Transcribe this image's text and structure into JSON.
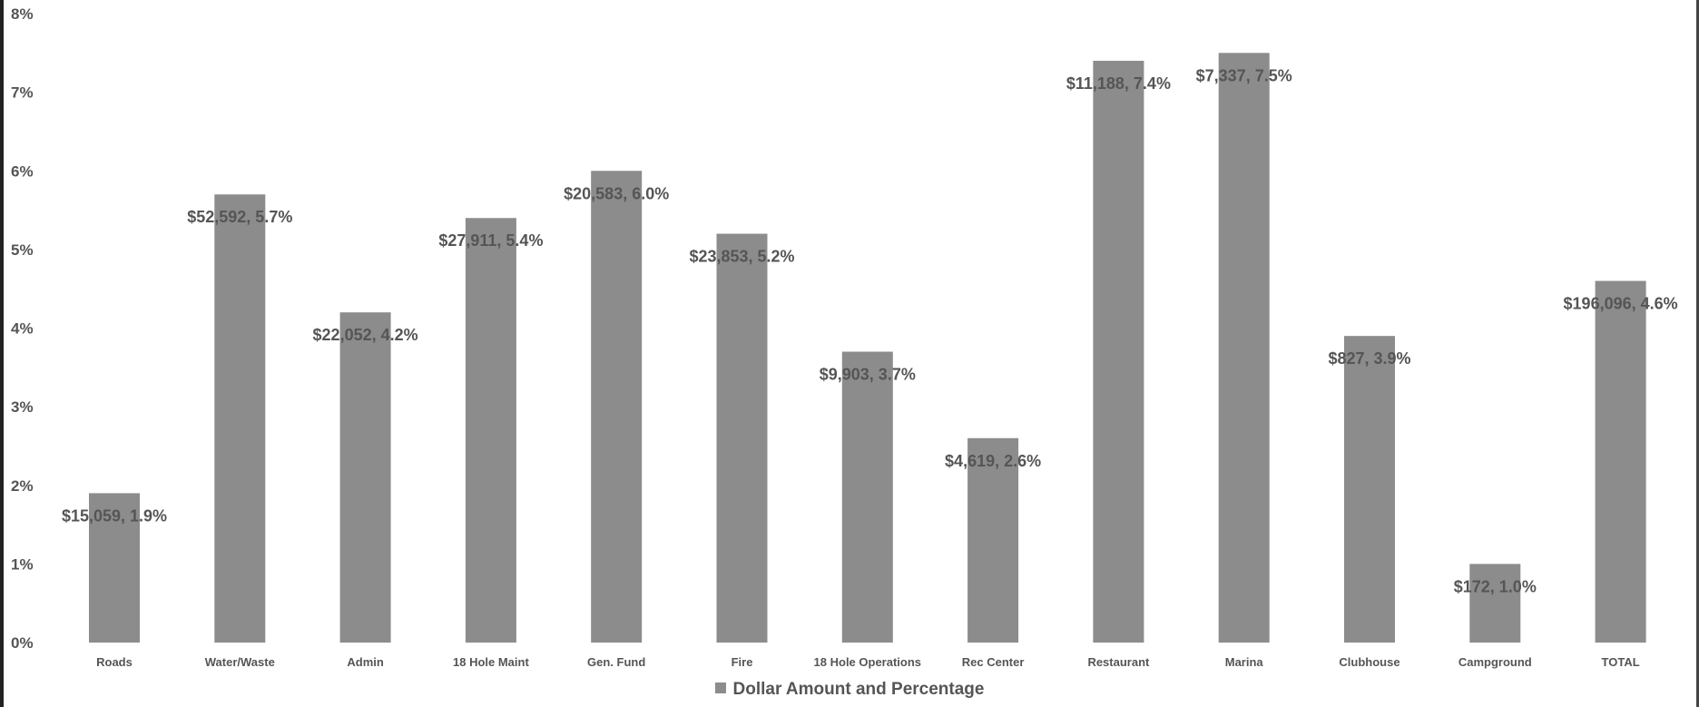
{
  "chart_data": {
    "type": "bar",
    "categories": [
      "Roads",
      "Water/Waste",
      "Admin",
      "18 Hole Maint",
      "Gen. Fund",
      "Fire",
      "18 Hole Operations",
      "Rec Center",
      "Restaurant",
      "Marina",
      "Clubhouse",
      "Campground",
      "TOTAL"
    ],
    "series": [
      {
        "name": "Dollar Amount and Percentage",
        "values": [
          1.9,
          5.7,
          4.2,
          5.4,
          6.0,
          5.2,
          3.7,
          2.6,
          7.4,
          7.5,
          3.9,
          1.0,
          4.6
        ],
        "data_labels": [
          "$15,059, 1.9%",
          "$52,592, 5.7%",
          "$22,052, 4.2%",
          "$27,911, 5.4%",
          "$20,583, 6.0%",
          "$23,853, 5.2%",
          "$9,903, 3.7%",
          "$4,619, 2.6%",
          "$11,188, 7.4%",
          "$7,337, 7.5%",
          "$827, 3.9%",
          "$172, 1.0%",
          "$196,096, 4.6%"
        ]
      }
    ],
    "y_ticks": [
      "0%",
      "1%",
      "2%",
      "3%",
      "4%",
      "5%",
      "6%",
      "7%",
      "8%"
    ],
    "ylim": [
      0,
      8
    ],
    "grid": false,
    "legend": "bottom",
    "colors": {
      "bar": "#8c8c8c",
      "text": "#555555"
    }
  }
}
